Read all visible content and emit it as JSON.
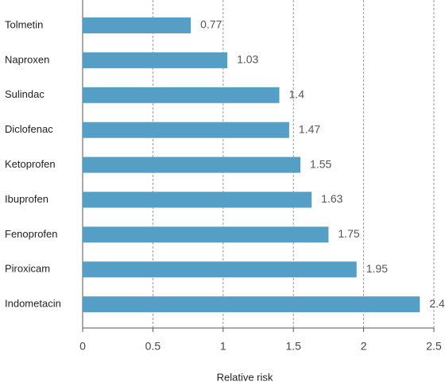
{
  "chart_data": {
    "type": "barh",
    "x_label": "Relative risk",
    "categories": [
      "Tolmetin",
      "Naproxen",
      "Sulindac",
      "Diclofenac",
      "Ketoprofen",
      "Ibuprofen",
      "Fenoprofen",
      "Piroxicam",
      "Indometacin"
    ],
    "values": [
      0.77,
      1.03,
      1.4,
      1.47,
      1.55,
      1.63,
      1.75,
      1.95,
      2.4
    ],
    "color": "#559fc6",
    "xlim": [
      0,
      2.5
    ],
    "xticks": [
      0,
      0.5,
      1,
      1.5,
      2,
      2.5
    ],
    "grid": true
  }
}
